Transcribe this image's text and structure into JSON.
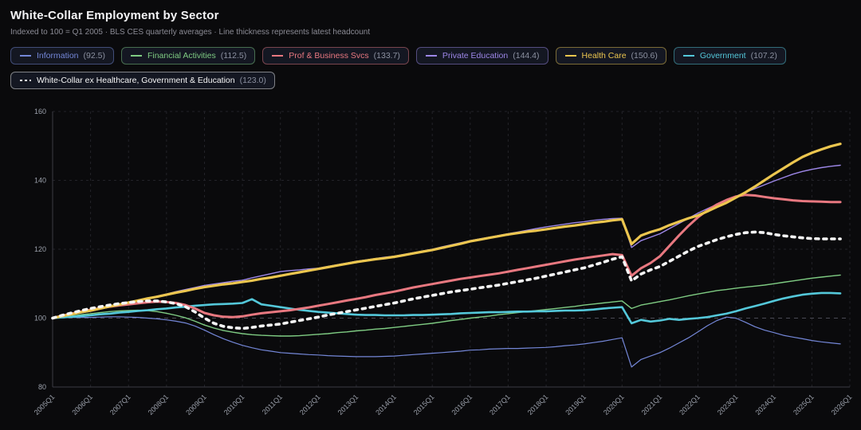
{
  "header": {
    "title": "White-Collar Employment by Sector",
    "subtitle": "Indexed to 100 = Q1 2005 · BLS CES quarterly averages · Line thickness represents latest headcount"
  },
  "colors": {
    "background": "#0a0a0c",
    "grid": "#232329",
    "grid_baseline": "#4a4a54",
    "axis": "#3c3c45",
    "tick_label": "#9ba0ab",
    "title": "#f4f4f6",
    "subtitle": "#8b8b95",
    "legend_value": "#8b90a0"
  },
  "chart_data": {
    "type": "line",
    "title": "White-Collar Employment by Sector",
    "index_note": "Indexed to 100 = Q1 2005",
    "source_note": "BLS CES quarterly averages",
    "thickness_note": "Line thickness represents latest headcount",
    "x_unit": "quarter",
    "x_start": "2005Q1",
    "x_end": "2026Q1",
    "quarters_per_tick": 4,
    "total_quarters_axis": 84,
    "x_tick_labels": [
      "2005Q1",
      "2006Q1",
      "2007Q1",
      "2008Q1",
      "2009Q1",
      "2010Q1",
      "2011Q1",
      "2012Q1",
      "2013Q1",
      "2014Q1",
      "2015Q1",
      "2016Q1",
      "2017Q1",
      "2018Q1",
      "2019Q1",
      "2020Q1",
      "2021Q1",
      "2022Q1",
      "2023Q1",
      "2024Q1",
      "2025Q1",
      "2026Q1"
    ],
    "ylim": [
      80,
      160
    ],
    "y_ticks": [
      80,
      100,
      120,
      140,
      160
    ],
    "baseline_value": 100,
    "grid": "dashed",
    "legend_position": "top",
    "draw_order": [
      0,
      1,
      3,
      5,
      2,
      4,
      6
    ],
    "series": [
      {
        "id": "information",
        "label": "Information",
        "latest": 92.5,
        "latest_label": "(92.5)",
        "color": "#7487d8",
        "width": 1.2,
        "dashed": false,
        "values": [
          100.0,
          100.1,
          100.2,
          100.2,
          100.2,
          100.3,
          100.4,
          100.4,
          100.3,
          100.2,
          100.0,
          99.8,
          99.5,
          99.1,
          98.6,
          97.7,
          96.5,
          95.2,
          94.0,
          93.0,
          92.1,
          91.4,
          90.8,
          90.4,
          90.0,
          89.8,
          89.6,
          89.4,
          89.3,
          89.1,
          89.0,
          88.9,
          88.8,
          88.8,
          88.8,
          88.9,
          89.0,
          89.2,
          89.4,
          89.6,
          89.8,
          90.0,
          90.2,
          90.4,
          90.7,
          90.8,
          91.0,
          91.1,
          91.2,
          91.2,
          91.3,
          91.4,
          91.5,
          91.7,
          92.0,
          92.2,
          92.5,
          92.9,
          93.3,
          93.8,
          94.3,
          85.8,
          88.0,
          89.0,
          90.0,
          91.3,
          92.8,
          94.3,
          96.0,
          97.8,
          99.3,
          100.3,
          100.0,
          98.8,
          97.5,
          96.5,
          95.8,
          95.0,
          94.5,
          94.0,
          93.5,
          93.1,
          92.8,
          92.5
        ]
      },
      {
        "id": "financial-activities",
        "label": "Financial Activities",
        "latest": 112.5,
        "latest_label": "(112.5)",
        "color": "#7fcc83",
        "width": 1.4,
        "dashed": false,
        "values": [
          100.0,
          100.3,
          100.6,
          101.0,
          101.3,
          101.6,
          101.9,
          102.1,
          102.2,
          102.3,
          102.2,
          101.9,
          101.4,
          100.8,
          100.1,
          99.1,
          98.0,
          97.1,
          96.4,
          95.9,
          95.5,
          95.2,
          95.0,
          94.9,
          94.8,
          94.8,
          94.9,
          95.1,
          95.3,
          95.5,
          95.8,
          96.0,
          96.3,
          96.5,
          96.8,
          97.0,
          97.3,
          97.6,
          97.9,
          98.2,
          98.5,
          98.9,
          99.3,
          99.6,
          100.0,
          100.3,
          100.6,
          101.0,
          101.3,
          101.6,
          101.9,
          102.2,
          102.5,
          102.8,
          103.1,
          103.4,
          103.8,
          104.1,
          104.4,
          104.7,
          105.0,
          102.8,
          103.8,
          104.3,
          104.8,
          105.3,
          105.9,
          106.5,
          107.0,
          107.5,
          108.0,
          108.3,
          108.7,
          109.0,
          109.3,
          109.6,
          110.0,
          110.4,
          110.8,
          111.2,
          111.6,
          111.9,
          112.2,
          112.5
        ]
      },
      {
        "id": "prof-business-svcs",
        "label": "Prof & Business Svcs",
        "latest": 133.7,
        "latest_label": "(133.7)",
        "color": "#e87880",
        "width": 3.0,
        "dashed": false,
        "values": [
          100.0,
          100.7,
          101.3,
          101.9,
          102.4,
          102.9,
          103.3,
          103.7,
          104.0,
          104.3,
          104.6,
          104.8,
          104.7,
          104.4,
          103.8,
          102.8,
          101.5,
          100.8,
          100.4,
          100.3,
          100.5,
          101.0,
          101.4,
          101.7,
          102.0,
          102.3,
          102.7,
          103.1,
          103.6,
          104.1,
          104.6,
          105.1,
          105.6,
          106.1,
          106.7,
          107.2,
          107.7,
          108.3,
          108.9,
          109.4,
          109.9,
          110.4,
          110.9,
          111.4,
          111.8,
          112.2,
          112.6,
          113.0,
          113.5,
          114.0,
          114.5,
          115.0,
          115.5,
          116.0,
          116.5,
          117.0,
          117.4,
          117.8,
          118.2,
          118.6,
          118.3,
          112.3,
          114.5,
          116.0,
          118.0,
          121.0,
          124.0,
          126.8,
          129.3,
          131.3,
          133.0,
          134.3,
          135.3,
          135.8,
          135.6,
          135.2,
          134.8,
          134.5,
          134.2,
          134.0,
          133.9,
          133.8,
          133.7,
          133.7
        ]
      },
      {
        "id": "private-education",
        "label": "Private Education",
        "latest": 144.4,
        "latest_label": "(144.4)",
        "color": "#9d87e8",
        "width": 1.4,
        "dashed": false,
        "values": [
          100.0,
          100.5,
          101.0,
          101.5,
          102.0,
          102.6,
          103.2,
          103.8,
          104.3,
          105.0,
          105.7,
          106.4,
          107.0,
          107.7,
          108.3,
          108.9,
          109.5,
          109.9,
          110.3,
          110.7,
          111.0,
          111.7,
          112.3,
          112.9,
          113.5,
          113.8,
          114.0,
          114.3,
          114.5,
          115.0,
          115.5,
          116.0,
          116.5,
          116.9,
          117.3,
          117.7,
          118.0,
          118.5,
          119.0,
          119.5,
          120.0,
          120.7,
          121.3,
          121.9,
          122.5,
          123.0,
          123.5,
          124.0,
          124.5,
          125.0,
          125.5,
          126.0,
          126.5,
          126.9,
          127.3,
          127.7,
          128.0,
          128.4,
          128.7,
          128.9,
          129.0,
          120.5,
          122.5,
          123.5,
          124.5,
          126.0,
          127.5,
          129.0,
          130.5,
          131.8,
          133.0,
          134.2,
          135.4,
          136.5,
          137.6,
          138.7,
          139.8,
          140.8,
          141.8,
          142.6,
          143.2,
          143.7,
          144.1,
          144.4
        ]
      },
      {
        "id": "health-care",
        "label": "Health Care",
        "latest": 150.6,
        "latest_label": "(150.6)",
        "color": "#ecc64f",
        "width": 3.2,
        "dashed": false,
        "values": [
          100.0,
          100.6,
          101.1,
          101.7,
          102.2,
          102.8,
          103.4,
          103.9,
          104.5,
          105.1,
          105.7,
          106.2,
          106.8,
          107.4,
          107.9,
          108.5,
          109.0,
          109.4,
          109.8,
          110.1,
          110.5,
          110.9,
          111.4,
          111.8,
          112.3,
          112.8,
          113.3,
          113.8,
          114.3,
          114.8,
          115.3,
          115.8,
          116.3,
          116.7,
          117.1,
          117.4,
          117.8,
          118.3,
          118.8,
          119.3,
          119.8,
          120.4,
          121.0,
          121.6,
          122.3,
          122.8,
          123.3,
          123.8,
          124.3,
          124.7,
          125.1,
          125.4,
          125.8,
          126.2,
          126.6,
          126.9,
          127.3,
          127.7,
          128.0,
          128.4,
          128.7,
          121.5,
          124.0,
          125.0,
          125.8,
          127.0,
          128.0,
          129.0,
          129.8,
          131.0,
          132.3,
          133.5,
          135.0,
          136.5,
          138.2,
          140.0,
          141.8,
          143.5,
          145.2,
          146.8,
          148.0,
          149.0,
          149.9,
          150.6
        ]
      },
      {
        "id": "government",
        "label": "Government",
        "latest": 107.2,
        "latest_label": "(107.2)",
        "color": "#54c8da",
        "width": 2.6,
        "dashed": false,
        "values": [
          100.0,
          100.2,
          100.4,
          100.6,
          100.8,
          101.1,
          101.3,
          101.6,
          101.8,
          102.1,
          102.3,
          102.6,
          102.8,
          103.1,
          103.3,
          103.6,
          103.8,
          104.0,
          104.1,
          104.2,
          104.4,
          105.5,
          104.0,
          103.6,
          103.2,
          102.8,
          102.4,
          102.1,
          101.8,
          101.6,
          101.4,
          101.2,
          101.0,
          100.9,
          100.9,
          100.8,
          100.8,
          100.8,
          100.9,
          100.9,
          101.0,
          101.1,
          101.2,
          101.4,
          101.5,
          101.6,
          101.7,
          101.7,
          101.8,
          101.9,
          101.9,
          102.0,
          102.0,
          102.1,
          102.2,
          102.2,
          102.3,
          102.5,
          102.8,
          103.0,
          103.2,
          98.5,
          99.5,
          99.0,
          99.3,
          99.8,
          99.5,
          99.8,
          100.0,
          100.3,
          100.8,
          101.3,
          102.0,
          102.8,
          103.5,
          104.2,
          105.0,
          105.7,
          106.3,
          106.8,
          107.1,
          107.3,
          107.3,
          107.2
        ]
      },
      {
        "id": "white-collar-ex",
        "label": "White-Collar ex Healthcare, Government & Education",
        "latest": 123.0,
        "latest_label": "(123.0)",
        "color": "#f5f5f5",
        "width": 3.6,
        "dashed": true,
        "values": [
          100.0,
          100.8,
          101.5,
          102.2,
          102.8,
          103.3,
          103.8,
          104.2,
          104.5,
          104.8,
          105.0,
          105.0,
          104.7,
          104.2,
          103.3,
          101.8,
          100.0,
          98.5,
          97.6,
          97.2,
          97.0,
          97.3,
          97.7,
          98.0,
          98.3,
          98.8,
          99.3,
          99.8,
          100.3,
          100.9,
          101.4,
          101.9,
          102.4,
          102.9,
          103.4,
          103.9,
          104.4,
          105.0,
          105.6,
          106.1,
          106.6,
          107.1,
          107.6,
          108.0,
          108.4,
          108.8,
          109.2,
          109.6,
          110.1,
          110.6,
          111.1,
          111.6,
          112.2,
          112.8,
          113.4,
          114.0,
          114.6,
          115.4,
          116.2,
          117.1,
          117.8,
          110.8,
          112.8,
          114.0,
          115.0,
          116.5,
          118.0,
          119.5,
          120.8,
          121.8,
          122.8,
          123.6,
          124.3,
          124.8,
          125.0,
          124.8,
          124.3,
          123.9,
          123.6,
          123.3,
          123.1,
          123.0,
          123.0,
          123.0
        ]
      }
    ]
  }
}
